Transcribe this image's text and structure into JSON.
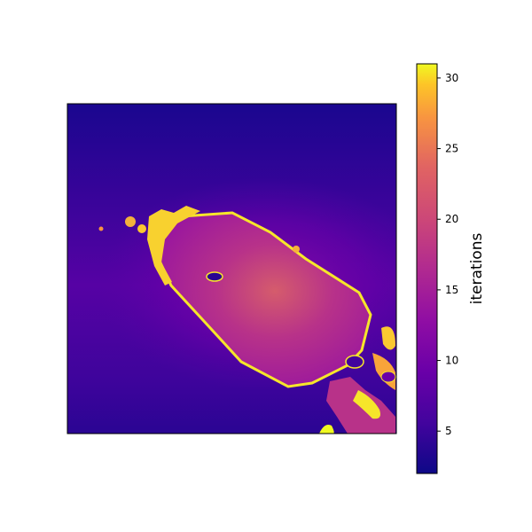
{
  "chart_data": {
    "type": "heatmap",
    "title": "",
    "xlabel": "",
    "ylabel": "",
    "colormap": "plasma",
    "colorbar": {
      "label": "iterations",
      "range": [
        2,
        31
      ],
      "ticks": [
        5,
        10,
        15,
        20,
        25,
        30
      ],
      "tick_labels": [
        "5",
        "10",
        "15",
        "20",
        "25",
        "30"
      ]
    },
    "axes": {
      "ticks_visible": false,
      "grid": false
    },
    "field": {
      "background_top": 3,
      "background_mid": 7,
      "background_bottom": 5,
      "object_body": 16,
      "object_edge": 31,
      "debris_region": 28
    }
  }
}
